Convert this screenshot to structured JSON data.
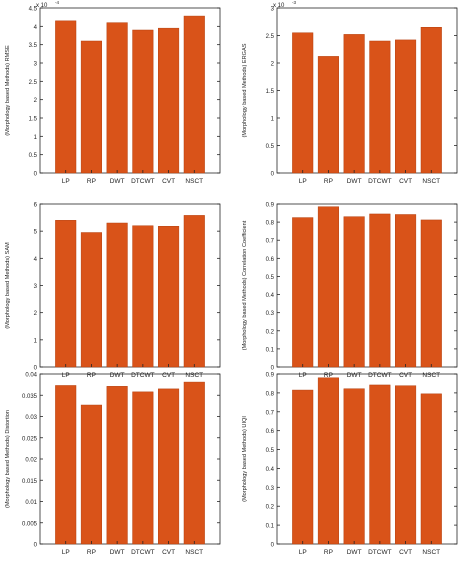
{
  "figure": {
    "bar_color": "#D95319",
    "bar_edge_color": "#B5410F"
  },
  "chart_data": [
    {
      "type": "bar",
      "title": "",
      "xlabel": "",
      "ylabel": "(Morphology based Methods) RMSE",
      "exponent_label": "x 10",
      "exponent_power": "-4",
      "categories": [
        "LP",
        "RP",
        "DWT",
        "DTCWT",
        "CVT",
        "NSCT"
      ],
      "values": [
        4.15,
        3.6,
        4.1,
        3.9,
        3.95,
        4.28
      ],
      "ylim": [
        0,
        4.5
      ],
      "yticks": [
        0,
        0.5,
        1,
        1.5,
        2,
        2.5,
        3,
        3.5,
        4,
        4.5
      ],
      "yticklabels": [
        "0",
        "0.5",
        "1",
        "1.5",
        "2",
        "2.5",
        "3",
        "3.5",
        "4",
        "4.5"
      ],
      "grid": false,
      "legend": "none"
    },
    {
      "type": "bar",
      "title": "",
      "xlabel": "",
      "ylabel": "(Morphology based Methods) ERGAS",
      "exponent_label": "x 10",
      "exponent_power": "-3",
      "categories": [
        "LP",
        "RP",
        "DWT",
        "DTCWT",
        "CVT",
        "NSCT"
      ],
      "values": [
        2.55,
        2.12,
        2.52,
        2.4,
        2.42,
        2.65
      ],
      "ylim": [
        0,
        3
      ],
      "yticks": [
        0,
        0.5,
        1,
        1.5,
        2,
        2.5,
        3
      ],
      "yticklabels": [
        "0",
        "0.5",
        "1",
        "1.5",
        "2",
        "2.5",
        "3"
      ],
      "grid": false,
      "legend": "none"
    },
    {
      "type": "bar",
      "title": "",
      "xlabel": "",
      "ylabel": "(Morphology based Methods) SAM",
      "categories": [
        "LP",
        "RP",
        "DWT",
        "DTCWT",
        "CVT",
        "NSCT"
      ],
      "values": [
        5.4,
        4.95,
        5.3,
        5.2,
        5.18,
        5.58
      ],
      "ylim": [
        0,
        6
      ],
      "yticks": [
        0,
        1,
        2,
        3,
        4,
        5,
        6
      ],
      "yticklabels": [
        "0",
        "1",
        "2",
        "3",
        "4",
        "5",
        "6"
      ],
      "grid": false,
      "legend": "none"
    },
    {
      "type": "bar",
      "title": "",
      "xlabel": "",
      "ylabel": "(Morphology based Methods) Correlation Coefficient",
      "categories": [
        "LP",
        "RP",
        "DWT",
        "DTCWT",
        "CVT",
        "NSCT"
      ],
      "values": [
        0.825,
        0.885,
        0.83,
        0.845,
        0.842,
        0.812
      ],
      "ylim": [
        0,
        0.9
      ],
      "yticks": [
        0,
        0.1,
        0.2,
        0.3,
        0.4,
        0.5,
        0.6,
        0.7,
        0.8,
        0.9
      ],
      "yticklabels": [
        "0",
        "0.1",
        "0.2",
        "0.3",
        "0.4",
        "0.5",
        "0.6",
        "0.7",
        "0.8",
        "0.9"
      ],
      "grid": false,
      "legend": "none"
    },
    {
      "type": "bar",
      "title": "",
      "xlabel": "",
      "ylabel": "(Morphology based Methods) Distortion",
      "categories": [
        "LP",
        "RP",
        "DWT",
        "DTCWT",
        "CVT",
        "NSCT"
      ],
      "values": [
        0.0373,
        0.0327,
        0.0371,
        0.0358,
        0.0365,
        0.0381
      ],
      "ylim": [
        0,
        0.04
      ],
      "yticks": [
        0,
        0.005,
        0.01,
        0.015,
        0.02,
        0.025,
        0.03,
        0.035,
        0.04
      ],
      "yticklabels": [
        "0",
        "0.005",
        "0.01",
        "0.015",
        "0.02",
        "0.025",
        "0.03",
        "0.035",
        "0.04"
      ],
      "grid": false,
      "legend": "none"
    },
    {
      "type": "bar",
      "title": "",
      "xlabel": "",
      "ylabel": "(Morphology based Methods) UIQI",
      "categories": [
        "LP",
        "RP",
        "DWT",
        "DTCWT",
        "CVT",
        "NSCT"
      ],
      "values": [
        0.815,
        0.88,
        0.822,
        0.842,
        0.838,
        0.795
      ],
      "ylim": [
        0,
        0.9
      ],
      "yticks": [
        0,
        0.1,
        0.2,
        0.3,
        0.4,
        0.5,
        0.6,
        0.7,
        0.8,
        0.9
      ],
      "yticklabels": [
        "0",
        "0.1",
        "0.2",
        "0.3",
        "0.4",
        "0.5",
        "0.6",
        "0.7",
        "0.8",
        "0.9"
      ],
      "grid": false,
      "legend": "none"
    }
  ]
}
